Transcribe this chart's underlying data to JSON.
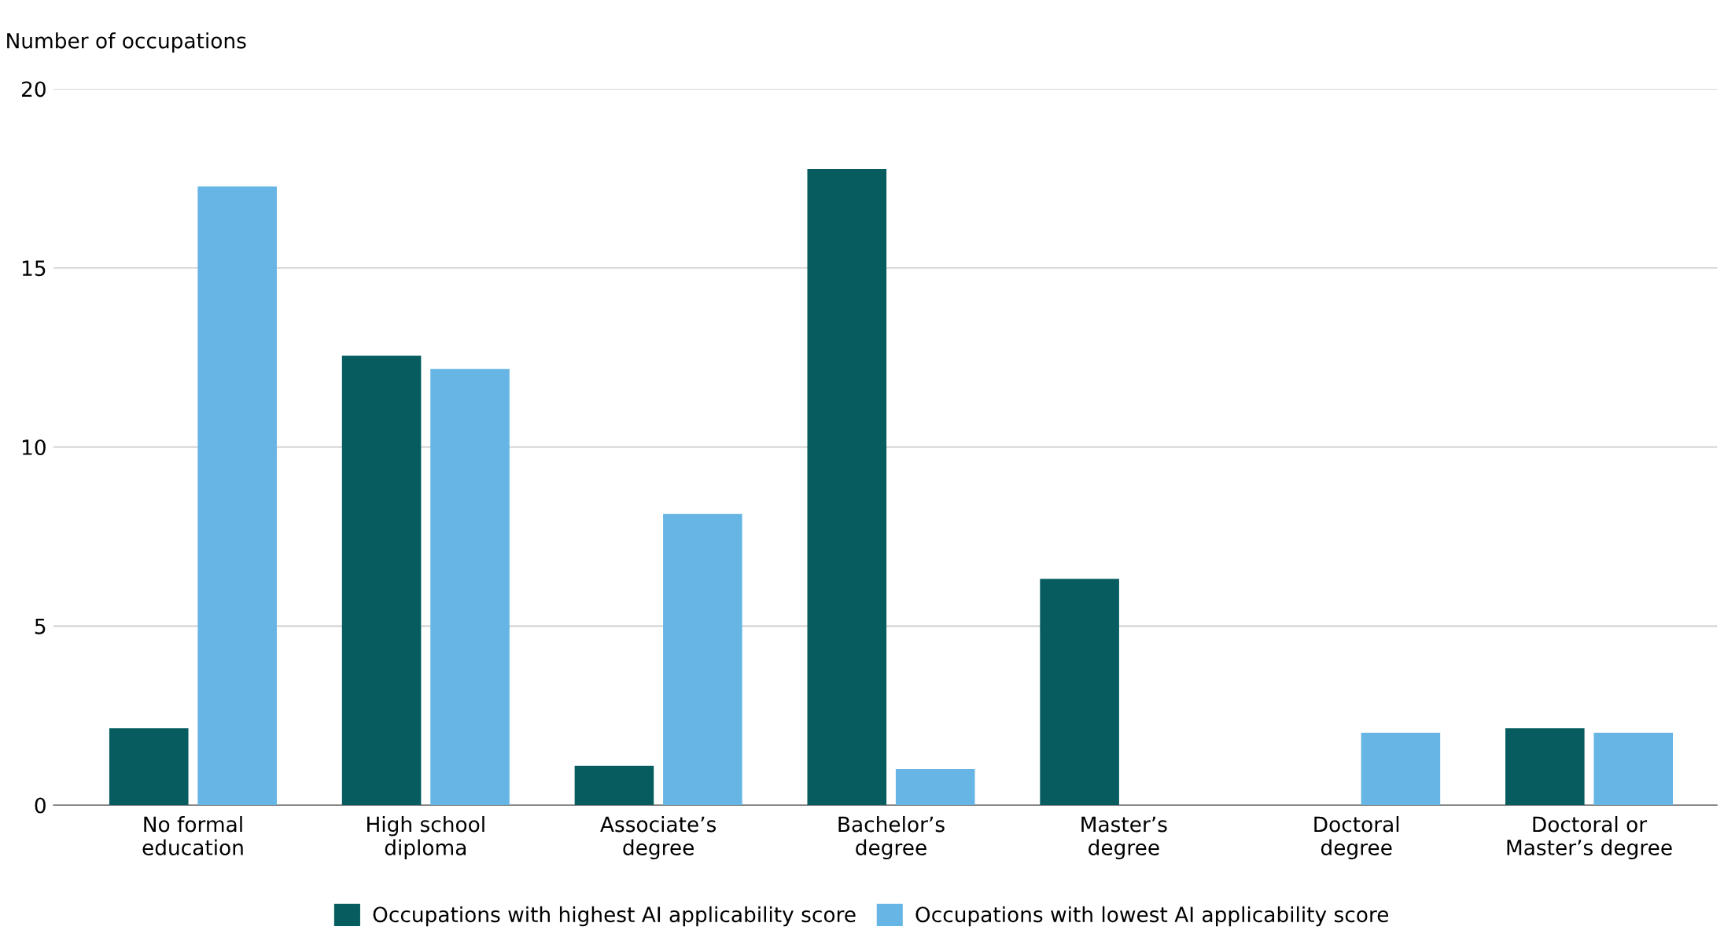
{
  "chart_data": {
    "type": "bar",
    "ylabel": "Number of occupations",
    "categories": [
      "No formal\neducation",
      "High school\ndiploma",
      "Associate’s\ndegree",
      "Bachelor’s\ndegree",
      "Master’s\ndegree",
      "Doctoral\ndegree",
      "Doctoral or\nMaster’s degree"
    ],
    "series": [
      {
        "name": "Occupations with highest AI applicability score",
        "color": "#065c5f",
        "values": [
          2.15,
          12.55,
          1.1,
          17.76,
          6.32,
          0,
          2.15
        ]
      },
      {
        "name": "Occupations with lowest AI applicability score",
        "color": "#66b5e5",
        "values": [
          17.27,
          12.18,
          8.13,
          1.01,
          0,
          2.02,
          2.02
        ]
      }
    ],
    "ylim": [
      0,
      20
    ],
    "yticks": [
      0,
      5,
      10,
      15,
      20
    ],
    "grid": "y",
    "legend": "bottom"
  }
}
